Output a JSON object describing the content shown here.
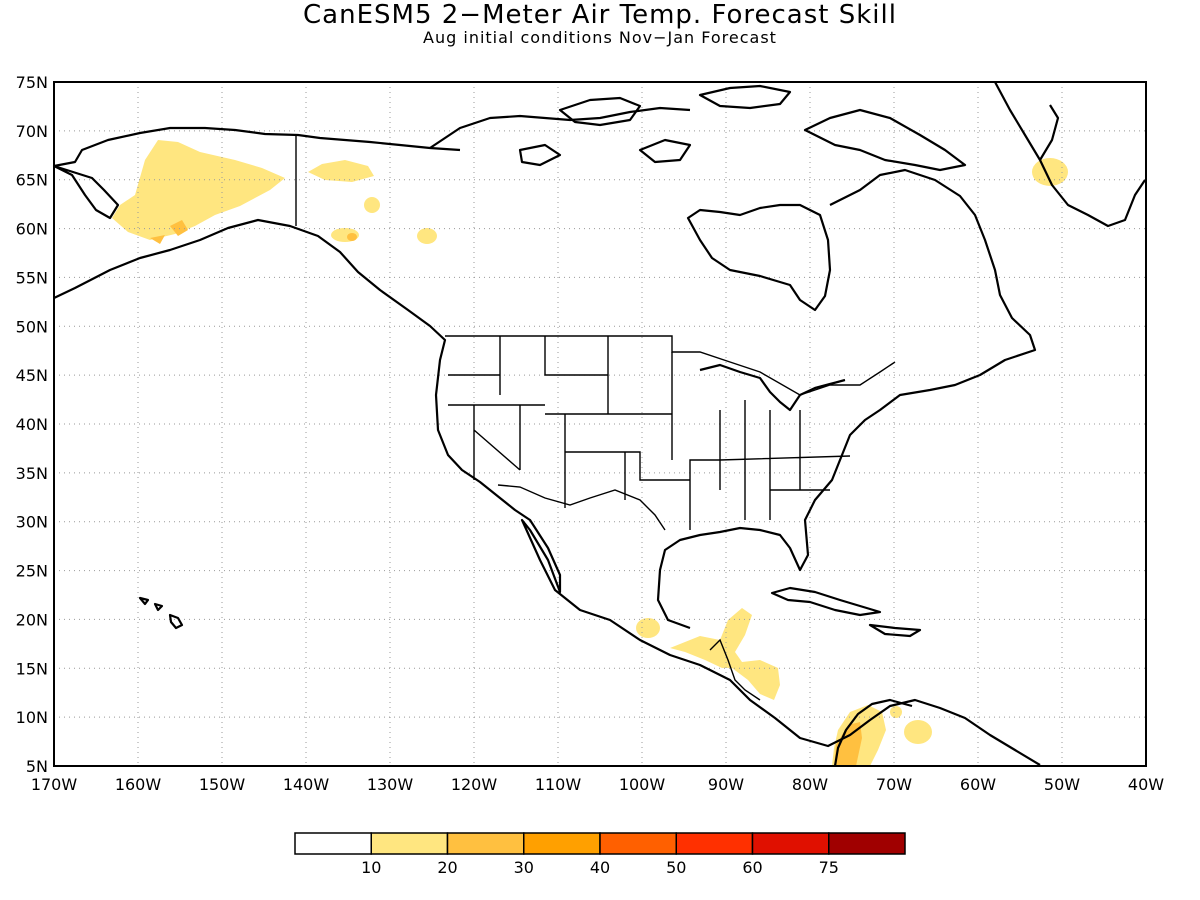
{
  "title": "CanESM5 2−Meter Air Temp. Forecast Skill",
  "subtitle": "Aug initial conditions  Nov−Jan Forecast",
  "map": {
    "lon_range": [
      -170,
      -40
    ],
    "lat_range": [
      5,
      75
    ],
    "lon_ticks": [
      "170W",
      "160W",
      "150W",
      "140W",
      "130W",
      "120W",
      "110W",
      "100W",
      "90W",
      "80W",
      "70W",
      "60W",
      "50W",
      "40W"
    ],
    "lat_ticks": [
      "75N",
      "70N",
      "65N",
      "60N",
      "55N",
      "50N",
      "45N",
      "40N",
      "35N",
      "30N",
      "25N",
      "20N",
      "15N",
      "10N",
      "5N"
    ],
    "grid": "dotted",
    "colors": {
      "c10": "#ffe680",
      "c20": "#ffc040",
      "c30": "#ffa000",
      "c40": "#ff6000",
      "c50": "#ff3000",
      "c60": "#e01000",
      "c75": "#a00000"
    },
    "skill_regions": [
      {
        "name": "alaska",
        "level": 10
      },
      {
        "name": "alaska-south",
        "level": 20
      },
      {
        "name": "yukon",
        "level": 10
      },
      {
        "name": "bc-coast",
        "level": 10
      },
      {
        "name": "greenland-sw",
        "level": 10
      },
      {
        "name": "mexico-south",
        "level": 10
      },
      {
        "name": "central-america",
        "level": 10
      },
      {
        "name": "colombia",
        "level": 20
      },
      {
        "name": "venezuela",
        "level": 10
      }
    ]
  },
  "colorbar": {
    "labels": [
      "10",
      "20",
      "30",
      "40",
      "50",
      "60",
      "75"
    ],
    "colors": [
      "#ffffff",
      "#ffe680",
      "#ffc040",
      "#ffa000",
      "#ff6000",
      "#ff3000",
      "#e01000",
      "#a00000"
    ]
  }
}
